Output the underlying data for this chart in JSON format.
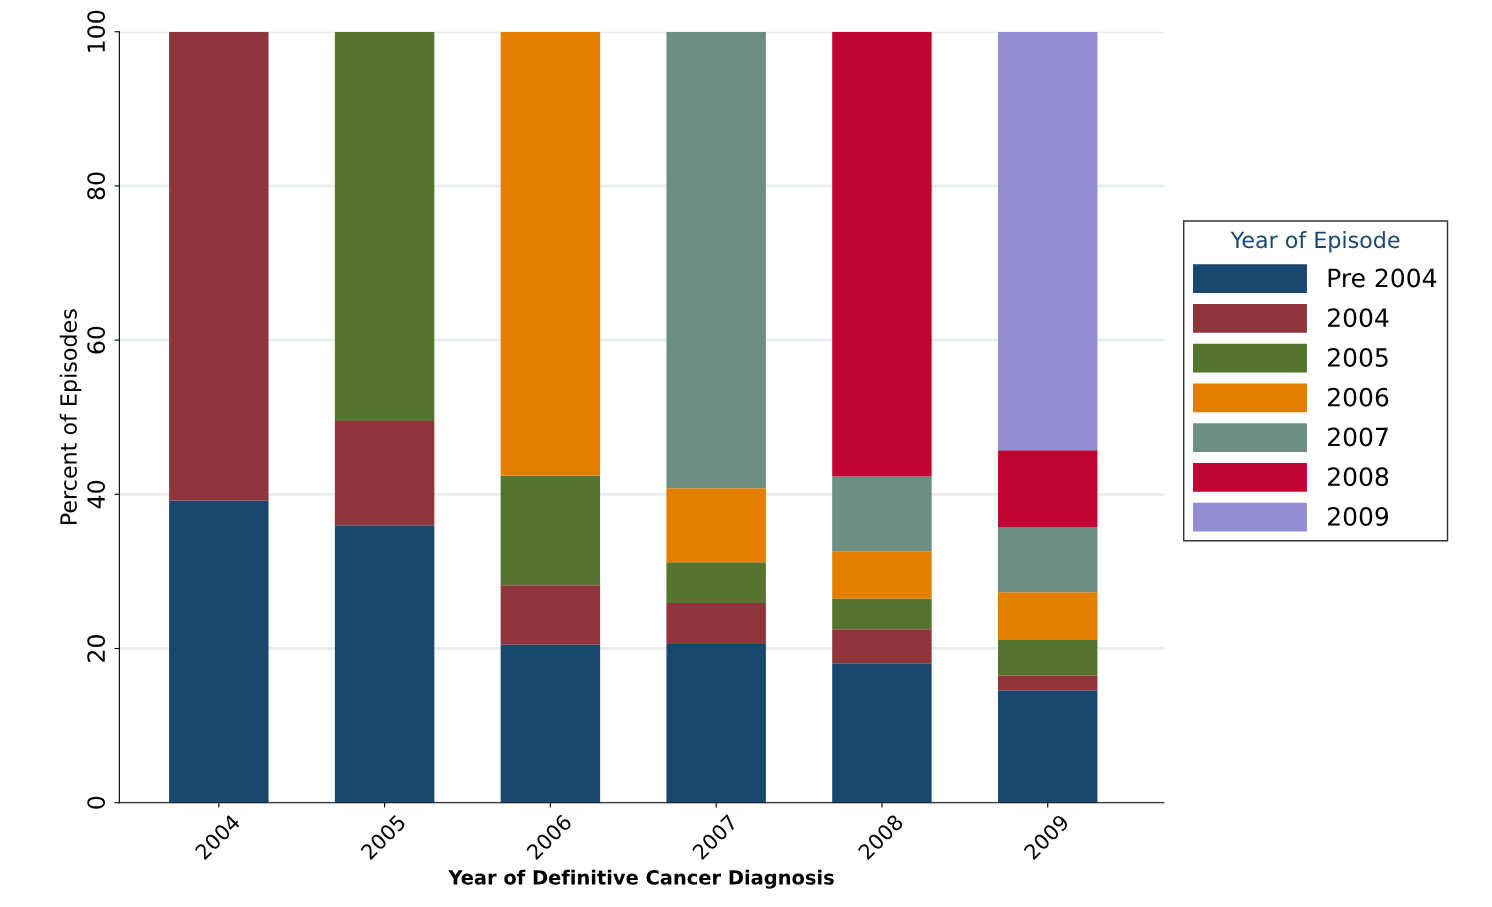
{
  "chart_data": {
    "type": "bar",
    "stacked": true,
    "xlabel": "Year of Definitive Cancer Diagnosis",
    "ylabel": "Percent of Episodes",
    "legend_title": "Year of Episode",
    "legend": "right",
    "categories": [
      "2004",
      "2005",
      "2006",
      "2007",
      "2008",
      "2009"
    ],
    "series": [
      {
        "name": "Pre 2004",
        "color": "#1a476f",
        "values": [
          39.2,
          36.0,
          20.5,
          20.6,
          18.1,
          14.6
        ]
      },
      {
        "name": "2004",
        "color": "#90353b",
        "values": [
          60.8,
          13.5,
          7.7,
          5.3,
          4.4,
          1.9
        ]
      },
      {
        "name": "2005",
        "color": "#55752f",
        "values": [
          null,
          50.5,
          14.2,
          5.3,
          4.0,
          4.6
        ]
      },
      {
        "name": "2006",
        "color": "#e37e00",
        "values": [
          null,
          null,
          57.6,
          9.6,
          6.1,
          6.2
        ]
      },
      {
        "name": "2007",
        "color": "#6e8e84",
        "values": [
          null,
          null,
          null,
          59.2,
          9.7,
          8.4
        ]
      },
      {
        "name": "2008",
        "color": "#c10534",
        "values": [
          null,
          null,
          null,
          null,
          57.7,
          10.0
        ]
      },
      {
        "name": "2009",
        "color": "#938dd2",
        "values": [
          null,
          null,
          null,
          null,
          null,
          54.3
        ]
      }
    ],
    "ylim": [
      0,
      100
    ],
    "yticks": [
      0,
      20,
      40,
      60,
      80,
      100
    ],
    "grid": "y"
  }
}
